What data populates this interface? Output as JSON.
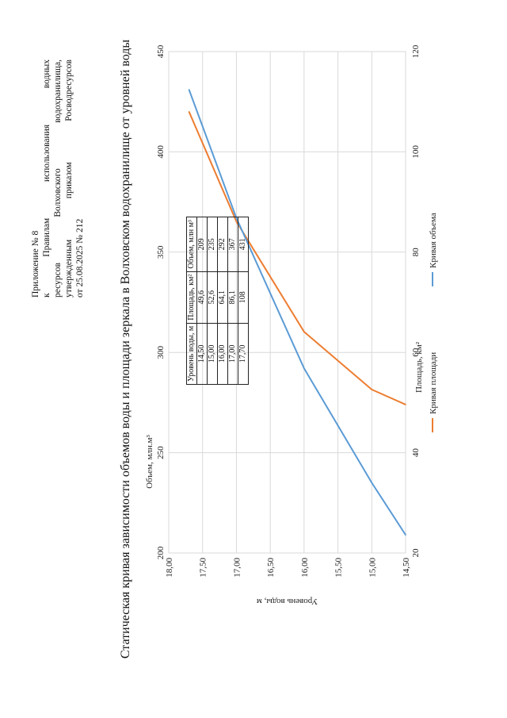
{
  "header": {
    "line1": "Приложение № 8",
    "line2": "к Правилам использования водных",
    "line3": "ресурсов Волховского водохранилища,",
    "line4": "утвержденным приказом Росводресурсов",
    "line5": "от 25.08.2025 № 212"
  },
  "page_title": "Статическая кривая зависимости объемов воды и площади зеркала в Волховском водохранилище от уровней воды",
  "table": {
    "headers": [
      "Уровень воды, м",
      "Площадь, км²",
      "Объем, млн м³"
    ],
    "rows": [
      [
        "14,50",
        "49,6",
        "209"
      ],
      [
        "15,00",
        "52,6",
        "235"
      ],
      [
        "16,00",
        "64,1",
        "292"
      ],
      [
        "17,00",
        "86,1",
        "367"
      ],
      [
        "17,70",
        "108",
        "431"
      ]
    ]
  },
  "chart_data": {
    "type": "line",
    "title": "Статическая кривая зависимости объемов воды и площади зеркала в Волховском водохранилище от уровней воды",
    "ylabel": "Уровень воды, м",
    "x_top_label": "Объем, млн.м³",
    "x_bottom_label": "Площадь, км²",
    "ylim": [
      14.5,
      18.0
    ],
    "yticks": [
      "14,50",
      "15,00",
      "15,50",
      "16,00",
      "16,50",
      "17,00",
      "17,50",
      "18,00"
    ],
    "x_top_lim": [
      200,
      450
    ],
    "x_top_ticks": [
      "200",
      "250",
      "300",
      "350",
      "400",
      "450"
    ],
    "x_bottom_lim": [
      20,
      120
    ],
    "x_bottom_ticks": [
      "20",
      "40",
      "60",
      "80",
      "100",
      "120"
    ],
    "grid": true,
    "legend_position": "bottom",
    "series": [
      {
        "name": "Кривая площади",
        "axis": "bottom",
        "color": "#ED7D31",
        "x": [
          49.6,
          52.6,
          64.1,
          86.1,
          108
        ],
        "y": [
          14.5,
          15.0,
          16.0,
          17.0,
          17.7
        ]
      },
      {
        "name": "Кривая объема",
        "axis": "top",
        "color": "#5B9BD5",
        "x": [
          209,
          235,
          292,
          367,
          431
        ],
        "y": [
          14.5,
          15.0,
          16.0,
          17.0,
          17.7
        ]
      }
    ]
  }
}
